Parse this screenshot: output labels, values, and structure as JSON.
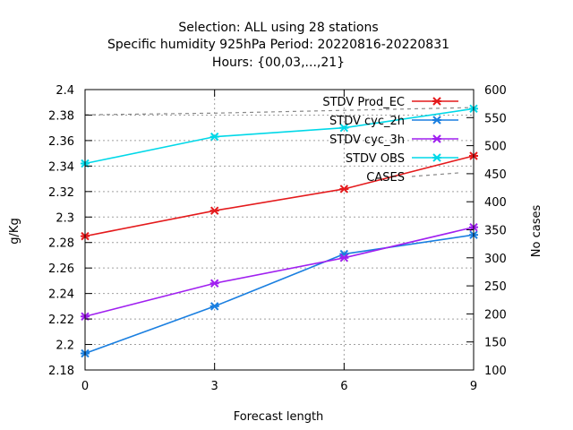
{
  "chart_data": {
    "type": "line",
    "title": [
      "Selection: ALL using    28 stations",
      "Specific humidity 925hPa   Period: 20220816-20220831",
      "Hours: {00,03,...,21}"
    ],
    "xlabel": "Forecast length",
    "ylabel": "g/Kg",
    "y2label": "No cases",
    "x": [
      0,
      3,
      6,
      9
    ],
    "xlim": [
      0,
      9
    ],
    "ylim": [
      2.18,
      2.4
    ],
    "y2lim": [
      100,
      600
    ],
    "xticks": [
      "0",
      "3",
      "6",
      "9"
    ],
    "yticks": [
      "2.18",
      "2.2",
      "2.22",
      "2.24",
      "2.26",
      "2.28",
      "2.3",
      "2.32",
      "2.34",
      "2.36",
      "2.38",
      "2.4"
    ],
    "y2ticks": [
      "100",
      "150",
      "200",
      "250",
      "300",
      "350",
      "400",
      "450",
      "500",
      "550",
      "600"
    ],
    "grid": true,
    "legend_position": "top-right",
    "series": [
      {
        "name": "STDV Prod_EC",
        "values": [
          2.285,
          2.305,
          2.322,
          2.348
        ],
        "color": "#e41a1c",
        "axis": "left"
      },
      {
        "name": "STDV cyc_2h",
        "values": [
          2.193,
          2.23,
          2.271,
          2.286
        ],
        "color": "#1a7fe0",
        "axis": "left"
      },
      {
        "name": "STDV cyc_3h",
        "values": [
          2.222,
          2.248,
          2.268,
          2.292
        ],
        "color": "#a020f0",
        "axis": "left"
      },
      {
        "name": "STDV OBS",
        "values": [
          2.342,
          2.363,
          2.37,
          2.385
        ],
        "color": "#00d8e8",
        "axis": "left"
      },
      {
        "name": "CASES",
        "values": [
          555,
          558,
          563,
          568
        ],
        "color": "#888888",
        "axis": "right",
        "dashed": true
      }
    ]
  }
}
